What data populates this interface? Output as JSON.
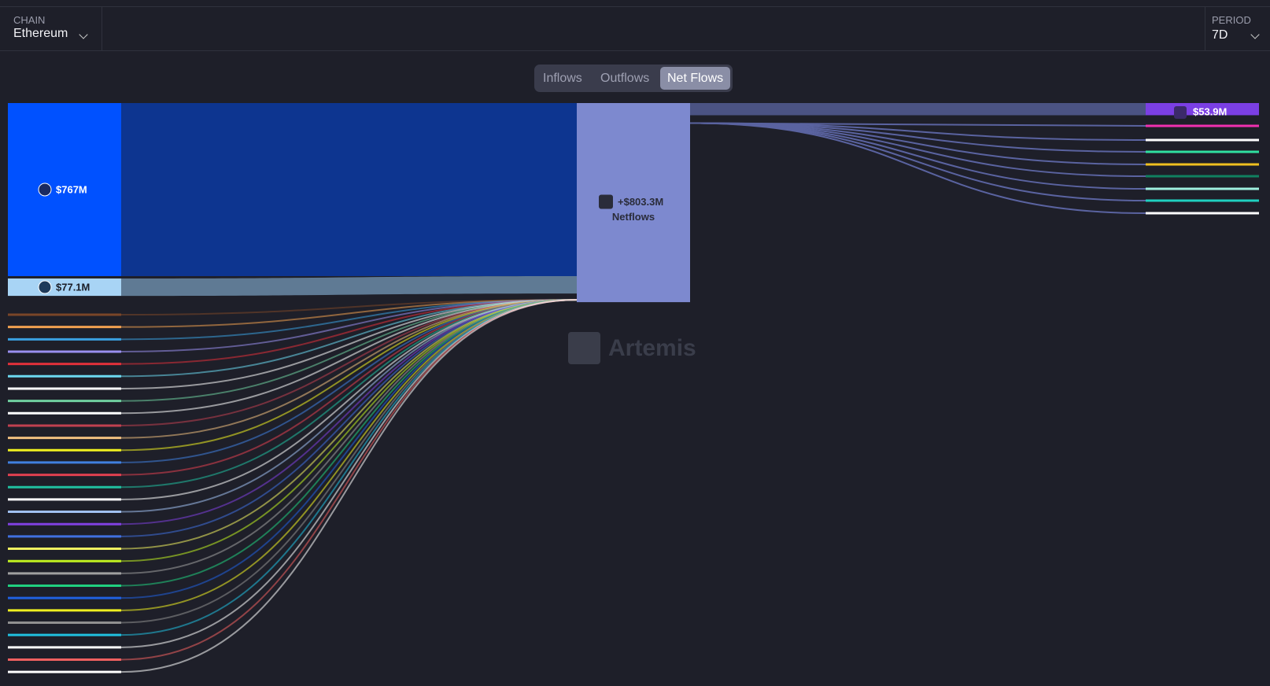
{
  "header": {
    "chain_caption": "CHAIN",
    "chain": "Ethereum",
    "period_caption": "PERIOD",
    "period": "7D"
  },
  "tabs": [
    "Inflows",
    "Outflows",
    "Net Flows"
  ],
  "active_tab": 2,
  "sankey": {
    "inflows": [
      {
        "label": "$767M",
        "value": 767,
        "color": "#0051ff",
        "band": "#0d3590"
      },
      {
        "label": "$77.1M",
        "value": 77.1,
        "color": "#a8d4f5",
        "band": "#5f7a94"
      }
    ],
    "center": {
      "value_label": "+$803.3M",
      "name": "Netflows",
      "color": "#7d89cf"
    },
    "outflows": [
      {
        "label": "$53.9M",
        "value": 53.9,
        "color": "#7b3fe4",
        "band": "#4b5383"
      }
    ],
    "other_inflow_colors": [
      "#7a4528",
      "#f0a050",
      "#3aa0e0",
      "#9a8ff0",
      "#e0303a",
      "#6cd8f0",
      "#ffffff",
      "#70d0a0",
      "#ffffff",
      "#c04050",
      "#f0c080",
      "#f0f020",
      "#4080e0",
      "#e04050",
      "#20c0a0",
      "#ffffff",
      "#a0c0f0",
      "#8040e0",
      "#4070e0",
      "#f0f060",
      "#c0f020",
      "#a0a0a0",
      "#20d080",
      "#2060e0",
      "#f0f020",
      "#909090",
      "#20c0e0",
      "#ffffff",
      "#f06060",
      "#ffffff"
    ],
    "other_outflow_colors": [
      "#f030b0",
      "#ffffff",
      "#30e0a0",
      "#f0c020",
      "#108060",
      "#a0f0e0",
      "#20d0c0",
      "#ffffff"
    ],
    "watermark": "Artemis"
  }
}
